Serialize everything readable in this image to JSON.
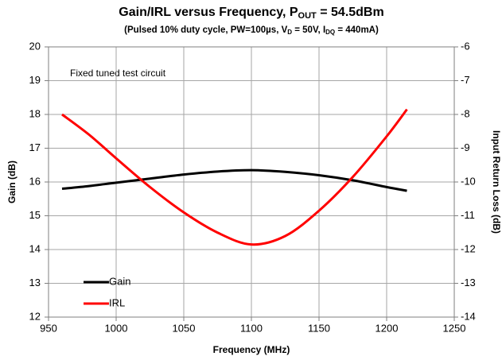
{
  "chart_data": {
    "type": "line",
    "title": [
      "Gain/IRL versus Frequency, P",
      "OUT",
      " = 54.5dBm"
    ],
    "subtitle": [
      "(Pulsed 10% duty cycle, PW=100µs,   V",
      "D",
      " = 50V, I",
      "DQ",
      " = 440mA)"
    ],
    "annotation": "Fixed tuned test circuit",
    "xlabel": "Frequency (MHz)",
    "ylabel": "Gain (dB)",
    "y2label": "Input Return Loss (dB)",
    "x": [
      960,
      980,
      1000,
      1025,
      1050,
      1075,
      1100,
      1125,
      1150,
      1175,
      1200,
      1215
    ],
    "series": [
      {
        "name": "Gain",
        "color": "#000000",
        "values": [
          15.8,
          15.88,
          15.98,
          16.1,
          16.22,
          16.31,
          16.35,
          16.3,
          16.2,
          16.05,
          15.85,
          15.74
        ]
      },
      {
        "name": "IRL",
        "color": "#ff0000",
        "axis": "y2",
        "values": [
          -8.0,
          -8.6,
          -9.3,
          -10.15,
          -10.9,
          -11.5,
          -11.85,
          -11.6,
          -10.85,
          -9.85,
          -8.65,
          -7.85
        ]
      }
    ],
    "xlim": [
      950,
      1250
    ],
    "xticks": [
      950,
      1000,
      1050,
      1100,
      1150,
      1200,
      1250
    ],
    "ylim": [
      12,
      20
    ],
    "yticks": [
      12,
      13,
      14,
      15,
      16,
      17,
      18,
      19,
      20
    ],
    "y2lim": [
      -14,
      -6
    ],
    "y2ticks": [
      -14,
      -13,
      -12,
      -11,
      -10,
      -9,
      -8,
      -7,
      -6
    ],
    "grid": true,
    "legend": "lower left"
  }
}
